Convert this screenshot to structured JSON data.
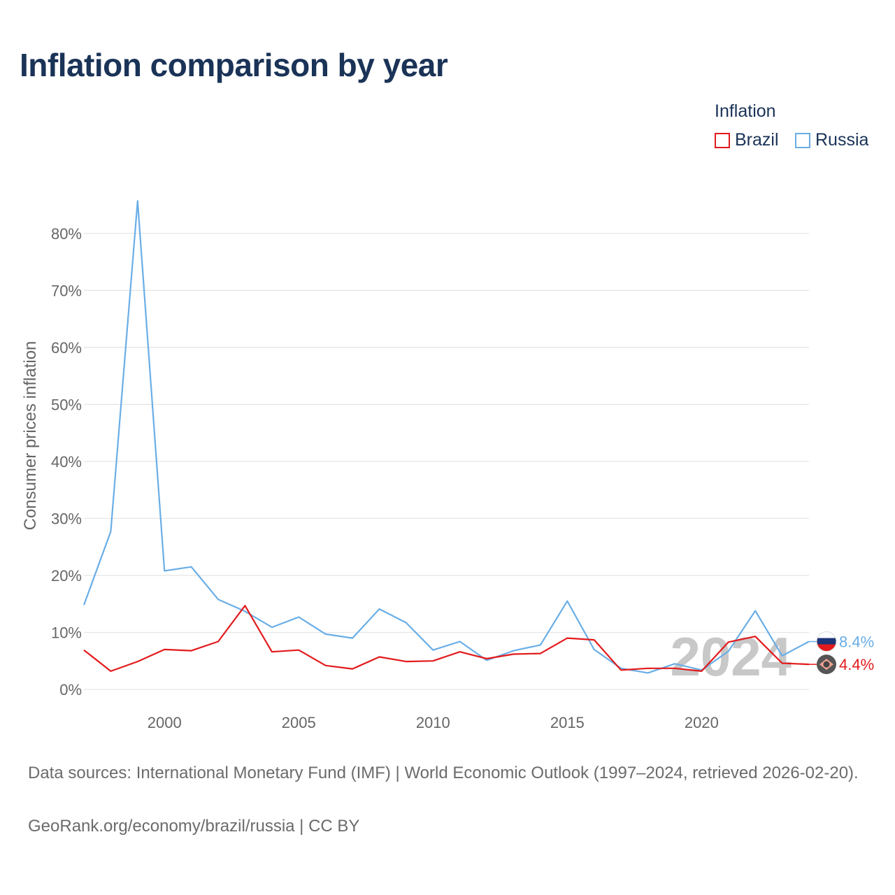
{
  "title": "Inflation comparison by year",
  "legend": {
    "title": "Inflation",
    "items": [
      {
        "label": "Brazil",
        "color": "#e31a1c"
      },
      {
        "label": "Russia",
        "color": "#6aaee6"
      }
    ]
  },
  "footer": {
    "source": "Data sources: International Monetary Fund (IMF) | World Economic Outlook (1997–2024, retrieved 2026-02-20).",
    "credit": "GeoRank.org/economy/brazil/russia | CC BY"
  },
  "colors": {
    "brazil": "#e31a1c",
    "russia": "#6aaee6",
    "grid": "#e6e6e6",
    "axis_text": "#666666",
    "watermark": "#c2c2c2"
  },
  "chart_data": {
    "type": "line",
    "ylabel": "Consumer prices inflation",
    "xlabel": "",
    "xlim": [
      1997,
      2024
    ],
    "ylim": [
      0,
      85
    ],
    "x_ticks": [
      2000,
      2005,
      2010,
      2015,
      2020
    ],
    "y_ticks": [
      0,
      10,
      20,
      30,
      40,
      50,
      60,
      70,
      80
    ],
    "y_tick_labels": [
      "0%",
      "10%",
      "20%",
      "30%",
      "40%",
      "50%",
      "60%",
      "70%",
      "80%"
    ],
    "x": [
      1997,
      1998,
      1999,
      2000,
      2001,
      2002,
      2003,
      2004,
      2005,
      2006,
      2007,
      2008,
      2009,
      2010,
      2011,
      2012,
      2013,
      2014,
      2015,
      2016,
      2017,
      2018,
      2019,
      2020,
      2021,
      2022,
      2023,
      2024
    ],
    "series": [
      {
        "name": "Brazil",
        "color": "#e31a1c",
        "values": [
          6.9,
          3.2,
          4.9,
          7.0,
          6.8,
          8.4,
          14.7,
          6.6,
          6.9,
          4.2,
          3.6,
          5.7,
          4.9,
          5.0,
          6.6,
          5.4,
          6.2,
          6.3,
          9.0,
          8.7,
          3.4,
          3.7,
          3.7,
          3.2,
          8.3,
          9.3,
          4.6,
          4.4
        ],
        "end_label": "4.4%"
      },
      {
        "name": "Russia",
        "color": "#6aaee6",
        "values": [
          14.8,
          27.7,
          85.7,
          20.8,
          21.5,
          15.8,
          13.7,
          10.9,
          12.7,
          9.7,
          9.0,
          14.1,
          11.7,
          6.9,
          8.4,
          5.1,
          6.8,
          7.8,
          15.5,
          7.0,
          3.7,
          2.9,
          4.5,
          3.4,
          6.7,
          13.8,
          5.9,
          8.4
        ],
        "end_label": "8.4%"
      }
    ],
    "watermark_year": "2024"
  }
}
